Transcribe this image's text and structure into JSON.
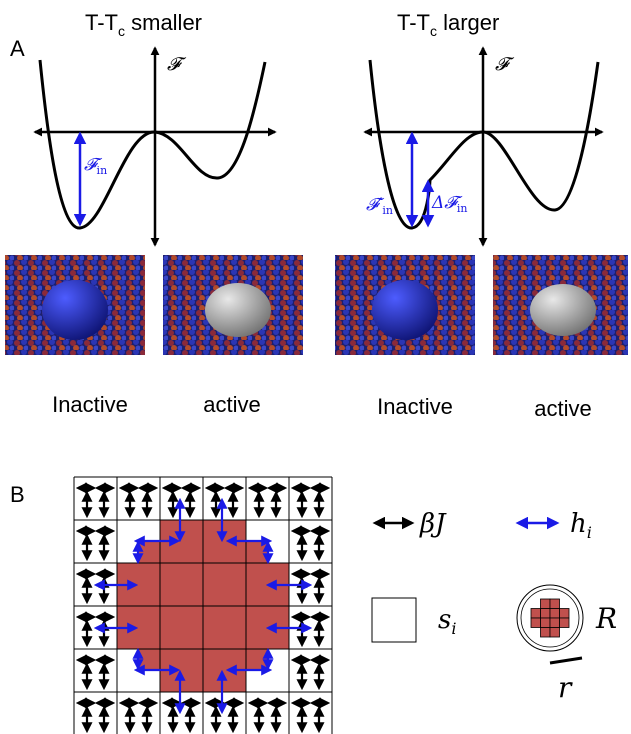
{
  "panel_a": {
    "label": "A",
    "left": {
      "title": {
        "main": "T-T",
        "sub": "c",
        "rest": " smaller"
      },
      "axis_label": "𝓕",
      "depth_label": {
        "main": "𝓕",
        "sub": "in"
      },
      "images": [
        "Inactive",
        "active"
      ]
    },
    "right": {
      "title": {
        "main": "T-T",
        "sub": "c",
        "rest": " larger"
      },
      "axis_label": "𝓕",
      "depth_label": {
        "main": "𝓕′",
        "sub": "in"
      },
      "difference_label": {
        "main": "Δ𝓕",
        "sub": "in"
      },
      "images": [
        "Inactive",
        "active"
      ]
    }
  },
  "panel_b": {
    "label": "B",
    "legend": {
      "coupling": "βJ",
      "field": {
        "main": "h",
        "sub": "i"
      },
      "spin": {
        "main": "s",
        "sub": "i"
      },
      "radius": "R",
      "lattice": "r"
    }
  }
}
